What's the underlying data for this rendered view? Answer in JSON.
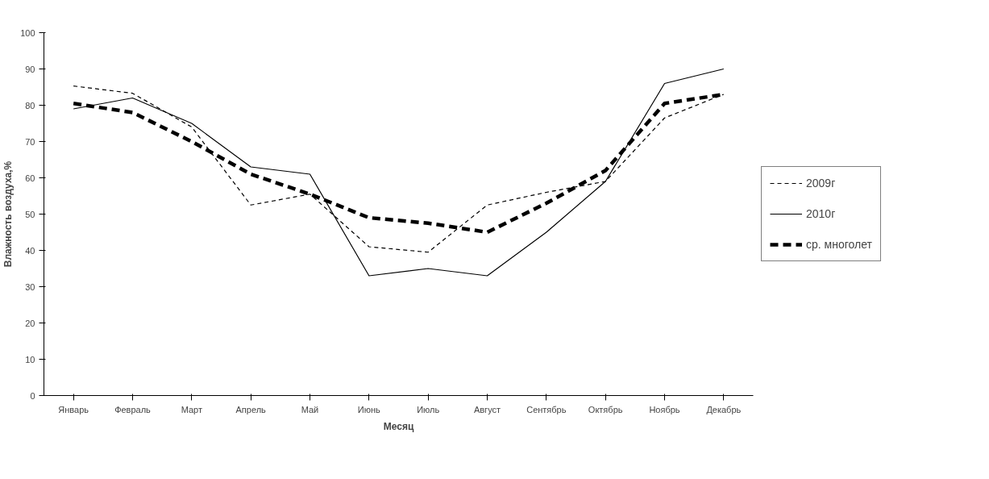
{
  "chart_data": {
    "type": "line",
    "xlabel": "Месяц",
    "ylabel": "Влажность воздуха,%",
    "categories": [
      "Январь",
      "Февраль",
      "Март",
      "Апрель",
      "Май",
      "Июнь",
      "Июль",
      "Август",
      "Сентябрь",
      "Октябрь",
      "Ноябрь",
      "Декабрь"
    ],
    "series": [
      {
        "name": "2009г",
        "color": "#000000",
        "line_style": "dashed",
        "values": [
          85.3,
          83.3,
          74,
          52.5,
          55.5,
          41,
          39.5,
          52.5,
          56,
          59,
          76.5,
          83
        ]
      },
      {
        "name": "2010г",
        "color": "#000000",
        "line_style": "solid",
        "values": [
          79,
          82,
          75,
          63,
          61,
          33,
          35,
          33,
          45,
          59,
          86,
          90
        ]
      },
      {
        "name": "ср. многолет",
        "color": "#000000",
        "line_style": "dashed",
        "values": [
          80.5,
          78,
          70,
          61,
          55.5,
          49,
          47.5,
          45,
          53,
          62,
          80.5,
          83
        ]
      }
    ],
    "ylim": [
      0,
      100
    ],
    "yticks": [
      0,
      10,
      20,
      30,
      40,
      50,
      60,
      70,
      80,
      90,
      100
    ],
    "grid": false,
    "legend": "right"
  }
}
